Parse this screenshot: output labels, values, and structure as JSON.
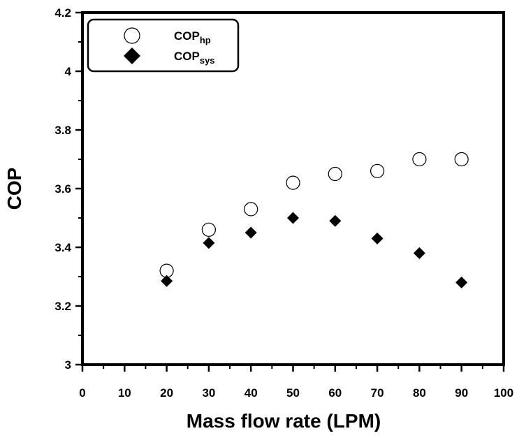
{
  "chart_data": {
    "type": "scatter",
    "xlabel": "Mass flow rate (LPM)",
    "ylabel": "COP",
    "xlim": [
      0,
      100
    ],
    "ylim": [
      3,
      4.2
    ],
    "x_ticks": [
      0,
      10,
      20,
      30,
      40,
      50,
      60,
      70,
      80,
      90,
      100
    ],
    "y_ticks": [
      3,
      3.2,
      3.4,
      3.6,
      3.8,
      4,
      4.2
    ],
    "grid": false,
    "legend_position": "top-left",
    "series": [
      {
        "name_main": "COP",
        "name_sub": "hp",
        "marker": "open-circle",
        "color": "#000000",
        "x": [
          20,
          30,
          40,
          50,
          60,
          70,
          80,
          90
        ],
        "y": [
          3.32,
          3.46,
          3.53,
          3.62,
          3.65,
          3.66,
          3.7,
          3.7
        ]
      },
      {
        "name_main": "COP",
        "name_sub": "sys",
        "marker": "filled-diamond",
        "color": "#000000",
        "x": [
          20,
          30,
          40,
          50,
          60,
          70,
          80,
          90
        ],
        "y": [
          3.285,
          3.415,
          3.45,
          3.5,
          3.49,
          3.43,
          3.38,
          3.28
        ]
      }
    ]
  }
}
